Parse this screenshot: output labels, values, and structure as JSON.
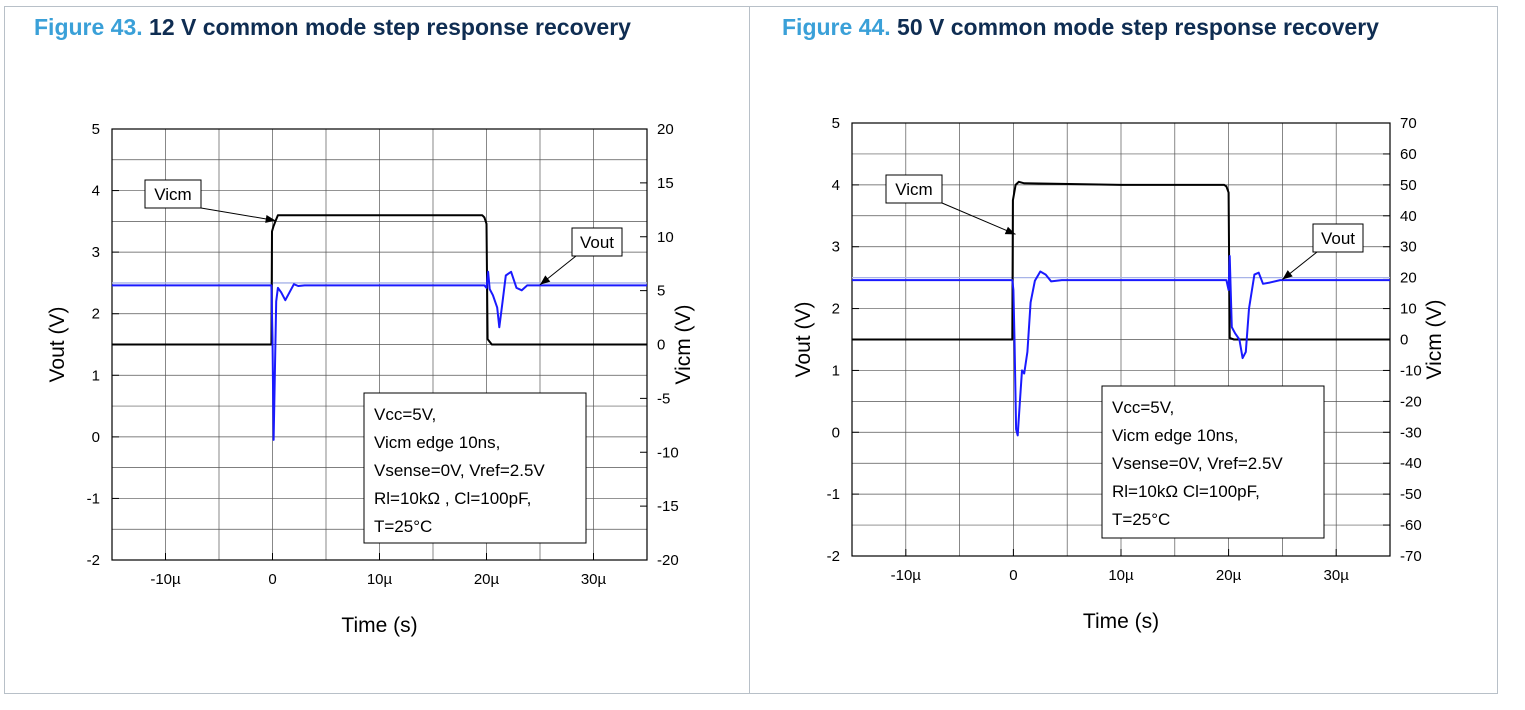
{
  "figures": [
    {
      "number": "Figure 43.",
      "title": "12 V common mode step response recovery"
    },
    {
      "number": "Figure 44.",
      "title": "50 V common mode step response recovery"
    }
  ],
  "colors": {
    "figure_number": "#3aa0d8",
    "figure_title": "#0f2d52",
    "vicm_trace": "#000000",
    "vout_trace": "#1a1aff"
  },
  "chart_data": [
    {
      "type": "line",
      "title": "",
      "xlabel": "Time (s)",
      "ylabel_left": "Vout (V)",
      "ylabel_right": "Vicm (V)",
      "xlim": [
        -15,
        35
      ],
      "x_unit": "µs",
      "ylim_left": [
        -2,
        5
      ],
      "ylim_right": [
        -20,
        20
      ],
      "x_ticks": [
        -10,
        0,
        10,
        20,
        30
      ],
      "x_tick_labels": [
        "-10µ",
        "0",
        "10µ",
        "20µ",
        "30µ"
      ],
      "y_ticks_left": [
        -2,
        -1,
        0,
        1,
        2,
        3,
        4,
        5
      ],
      "y_tick_labels_left": [
        "-2",
        "-1",
        "0",
        "1",
        "2",
        "3",
        "4",
        "5"
      ],
      "y_ticks_right": [
        -20,
        -15,
        -10,
        -5,
        0,
        5,
        10,
        15,
        20
      ],
      "y_tick_labels_right": [
        "-20",
        "-15",
        "-10",
        "-5",
        "0",
        "5",
        "10",
        "15",
        "20"
      ],
      "grid": true,
      "series": [
        {
          "name": "Vicm",
          "axis": "right",
          "x": [
            -15,
            -0.1,
            -0.05,
            0.1,
            0.3,
            0.5,
            10,
            19.6,
            19.8,
            20.0,
            20.1,
            20.5,
            35
          ],
          "y": [
            0,
            0,
            10.5,
            11,
            11.5,
            12,
            12,
            12,
            11.8,
            11.2,
            0.5,
            0,
            0
          ]
        },
        {
          "name": "Vout",
          "axis": "left",
          "x": [
            -15,
            -0.1,
            0.0,
            0.1,
            0.2,
            0.35,
            0.5,
            0.8,
            1.2,
            1.6,
            2.0,
            2.4,
            3.0,
            4,
            19.8,
            20.0,
            20.15,
            20.3,
            20.6,
            21.0,
            21.2,
            21.5,
            21.8,
            22.3,
            22.8,
            23.3,
            23.8,
            24.5,
            35
          ],
          "y": [
            2.46,
            2.46,
            1.6,
            -0.05,
            0.8,
            2.2,
            2.42,
            2.35,
            2.22,
            2.35,
            2.48,
            2.45,
            2.46,
            2.46,
            2.46,
            2.42,
            2.68,
            2.4,
            2.3,
            2.1,
            1.78,
            2.2,
            2.62,
            2.68,
            2.42,
            2.38,
            2.46,
            2.46,
            2.46
          ]
        }
      ],
      "reference_line": {
        "axis": "left",
        "value": 2.5
      },
      "annotations": [
        {
          "text": "Vicm",
          "points_to": {
            "x": 0.3,
            "axis": "right",
            "y": 11.5
          }
        },
        {
          "text": "Vout",
          "points_to": {
            "x": 25,
            "axis": "left",
            "y": 2.47
          }
        }
      ],
      "conditions": [
        "Vcc=5V,",
        "Vicm edge 10ns,",
        "Vsense=0V, Vref=2.5V",
        "Rl=10kΩ , Cl=100pF,",
        "T=25°C"
      ]
    },
    {
      "type": "line",
      "title": "",
      "xlabel": "Time (s)",
      "ylabel_left": "Vout (V)",
      "ylabel_right": "Vicm (V)",
      "xlim": [
        -15,
        35
      ],
      "x_unit": "µs",
      "ylim_left": [
        -2,
        5
      ],
      "ylim_right": [
        -70,
        70
      ],
      "x_ticks": [
        -10,
        0,
        10,
        20,
        30
      ],
      "x_tick_labels": [
        "-10µ",
        "0",
        "10µ",
        "20µ",
        "30µ"
      ],
      "y_ticks_left": [
        -2,
        -1,
        0,
        1,
        2,
        3,
        4,
        5
      ],
      "y_tick_labels_left": [
        "-2",
        "-1",
        "0",
        "1",
        "2",
        "3",
        "4",
        "5"
      ],
      "y_ticks_right": [
        -70,
        -60,
        -50,
        -40,
        -30,
        -20,
        -10,
        0,
        10,
        20,
        30,
        40,
        50,
        60,
        70
      ],
      "y_tick_labels_right": [
        "-70",
        "-60",
        "-50",
        "-40",
        "-30",
        "-20",
        "-10",
        "0",
        "10",
        "20",
        "30",
        "40",
        "50",
        "60",
        "70"
      ],
      "grid": true,
      "series": [
        {
          "name": "Vicm",
          "axis": "right",
          "x": [
            -15,
            -0.1,
            -0.05,
            0.2,
            0.5,
            1.0,
            10,
            19.6,
            19.8,
            20.0,
            20.1,
            20.5,
            35
          ],
          "y": [
            0,
            0,
            45,
            50,
            51,
            50.5,
            50,
            50,
            49.5,
            47.5,
            0.5,
            0,
            0
          ]
        },
        {
          "name": "Vout",
          "axis": "left",
          "x": [
            -15,
            -0.1,
            0.0,
            0.1,
            0.25,
            0.4,
            0.6,
            0.8,
            1.0,
            1.3,
            1.6,
            2.0,
            2.5,
            3.0,
            3.5,
            4.5,
            19.8,
            20.0,
            20.1,
            20.3,
            20.6,
            21.0,
            21.3,
            21.6,
            21.9,
            22.4,
            22.8,
            23.2,
            23.8,
            24.8,
            35
          ],
          "y": [
            2.46,
            2.46,
            2.3,
            1.5,
            0.05,
            -0.05,
            0.5,
            1.0,
            0.95,
            1.3,
            2.1,
            2.45,
            2.6,
            2.55,
            2.44,
            2.46,
            2.46,
            2.3,
            2.85,
            1.7,
            1.6,
            1.5,
            1.2,
            1.3,
            2.0,
            2.55,
            2.58,
            2.4,
            2.42,
            2.46,
            2.46
          ]
        }
      ],
      "reference_line": {
        "axis": "left",
        "value": 2.5
      },
      "annotations": [
        {
          "text": "Vicm",
          "points_to": {
            "x": 0.2,
            "axis": "right",
            "y": 34
          }
        },
        {
          "text": "Vout",
          "points_to": {
            "x": 25,
            "axis": "left",
            "y": 2.47
          }
        }
      ],
      "conditions": [
        "Vcc=5V,",
        "Vicm edge 10ns,",
        "Vsense=0V, Vref=2.5V",
        "Rl=10kΩ  Cl=100pF,",
        "T=25°C"
      ]
    }
  ]
}
